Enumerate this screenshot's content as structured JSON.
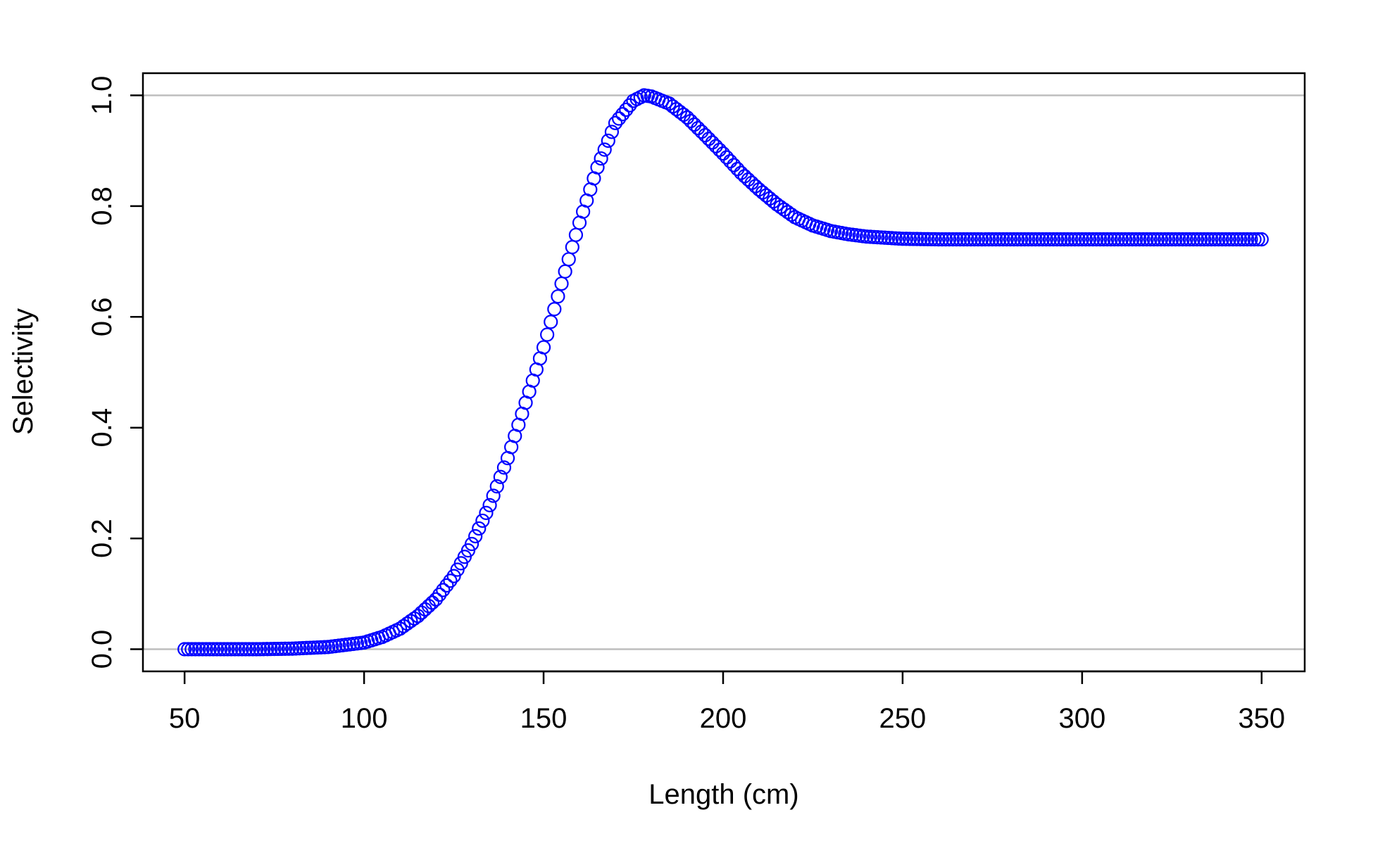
{
  "chart_data": {
    "type": "scatter",
    "title": "",
    "xlabel": "Length (cm)",
    "ylabel": "Selectivity",
    "xlim": [
      38.4,
      362
    ],
    "ylim": [
      -0.04,
      1.04
    ],
    "x_ticks": [
      50,
      100,
      150,
      200,
      250,
      300,
      350
    ],
    "x_tick_labels": [
      "50",
      "100",
      "150",
      "200",
      "250",
      "300",
      "350"
    ],
    "y_ticks": [
      0.0,
      0.2,
      0.4,
      0.6,
      0.8,
      1.0
    ],
    "y_tick_labels": [
      "0.0",
      "0.2",
      "0.4",
      "0.6",
      "0.8",
      "1.0"
    ],
    "reference_lines_y": [
      0.0,
      1.0
    ],
    "grid": false,
    "legend": "none",
    "marker": "open-circle",
    "colors": {
      "points": "#0000ff",
      "reference_lines": "#bebebe",
      "axes": "#000000"
    },
    "series": [
      {
        "x_start": 50,
        "x_end": 350,
        "x_step": 1,
        "curve_knots": {
          "x": [
            50,
            60,
            70,
            80,
            90,
            100,
            105,
            110,
            115,
            120,
            125,
            130,
            135,
            140,
            145,
            150,
            155,
            160,
            165,
            170,
            175,
            178,
            180,
            185,
            190,
            195,
            200,
            205,
            210,
            215,
            220,
            225,
            230,
            235,
            240,
            245,
            250,
            260,
            270,
            300,
            350
          ],
          "y": [
            0.0,
            0.0,
            0.0,
            0.001,
            0.004,
            0.012,
            0.022,
            0.037,
            0.06,
            0.09,
            0.132,
            0.19,
            0.26,
            0.345,
            0.445,
            0.545,
            0.66,
            0.77,
            0.87,
            0.95,
            0.99,
            1.0,
            0.998,
            0.985,
            0.96,
            0.928,
            0.895,
            0.86,
            0.83,
            0.803,
            0.78,
            0.765,
            0.755,
            0.749,
            0.745,
            0.743,
            0.741,
            0.74,
            0.74,
            0.74,
            0.74
          ]
        }
      }
    ]
  }
}
